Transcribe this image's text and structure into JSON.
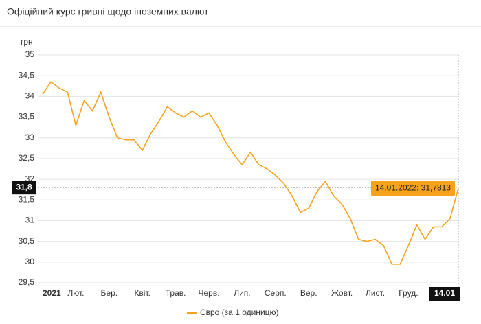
{
  "chart_data": {
    "type": "line",
    "title": "Офіційний курс гривні щодо іноземних валют",
    "ylabel": "грн",
    "categories": [
      "2021",
      null,
      null,
      null,
      "Лют.",
      null,
      null,
      null,
      "Бер.",
      null,
      null,
      null,
      "Квіт.",
      null,
      null,
      null,
      "Трав.",
      null,
      null,
      null,
      "Черв.",
      null,
      null,
      null,
      "Лип.",
      null,
      null,
      null,
      "Серп.",
      null,
      null,
      null,
      "Вер.",
      null,
      null,
      null,
      "Жовт.",
      null,
      null,
      null,
      "Лист.",
      null,
      null,
      null,
      "Груд.",
      null,
      null,
      null,
      null,
      null,
      "14.01"
    ],
    "series": [
      {
        "name": "Євро (за 1 одиницю)",
        "color": "#f7a21b",
        "values": [
          34.05,
          34.35,
          34.2,
          34.1,
          33.3,
          33.9,
          33.65,
          34.1,
          33.5,
          33.0,
          32.95,
          32.95,
          32.7,
          33.1,
          33.4,
          33.75,
          33.6,
          33.5,
          33.65,
          33.5,
          33.6,
          33.3,
          32.9,
          32.6,
          32.35,
          32.65,
          32.35,
          32.25,
          32.1,
          31.9,
          31.6,
          31.2,
          31.3,
          31.7,
          31.95,
          31.6,
          31.4,
          31.05,
          30.55,
          30.5,
          30.55,
          30.4,
          29.95,
          29.95,
          30.4,
          30.9,
          30.55,
          30.85,
          30.85,
          31.05,
          31.7813
        ]
      }
    ],
    "ylim": [
      29.5,
      35
    ],
    "yticks": [
      {
        "value": 29.5,
        "label": "29,5"
      },
      30,
      {
        "value": 30.5,
        "label": "30,5"
      },
      31,
      {
        "value": 31.5,
        "label": "31,5"
      },
      32,
      {
        "value": 32.5,
        "label": "32,5"
      },
      33,
      {
        "value": 33.5,
        "label": "33,5"
      },
      34,
      {
        "value": 34.5,
        "label": "34,5"
      },
      35
    ],
    "grid": true,
    "current_marker": {
      "value": 31.8,
      "label": "31,8"
    },
    "annotation": {
      "value": 31.7813,
      "label": "14.01.2022: 31,7813"
    }
  }
}
